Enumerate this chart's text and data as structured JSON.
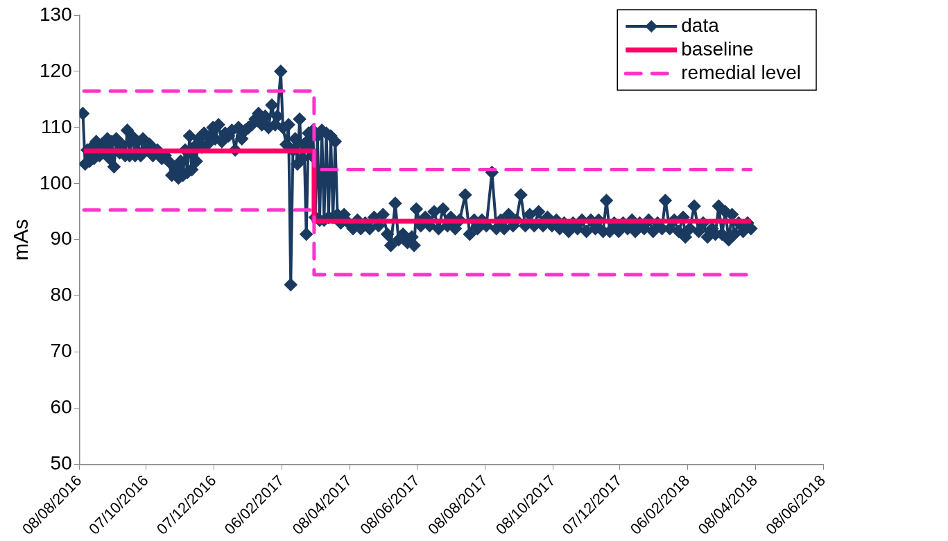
{
  "chart_data": {
    "type": "line",
    "ylabel": "mAs",
    "xlim": [
      "2016-08-08",
      "2018-06-08"
    ],
    "ylim": [
      50,
      130
    ],
    "yticks": [
      50,
      60,
      70,
      80,
      90,
      100,
      110,
      120,
      130
    ],
    "xticks": [
      {
        "value": "2016-08-08",
        "label": "08/08/2016"
      },
      {
        "value": "2016-10-07",
        "label": "07/10/2016"
      },
      {
        "value": "2016-12-07",
        "label": "07/12/2016"
      },
      {
        "value": "2017-02-06",
        "label": "06/02/2017"
      },
      {
        "value": "2017-04-08",
        "label": "08/04/2017"
      },
      {
        "value": "2017-06-08",
        "label": "08/06/2017"
      },
      {
        "value": "2017-08-08",
        "label": "08/08/2017"
      },
      {
        "value": "2017-10-08",
        "label": "08/10/2017"
      },
      {
        "value": "2017-12-07",
        "label": "07/12/2017"
      },
      {
        "value": "2018-02-06",
        "label": "06/02/2018"
      },
      {
        "value": "2018-04-08",
        "label": "08/04/2018"
      },
      {
        "value": "2018-06-08",
        "label": "08/06/2018"
      }
    ],
    "grid": false,
    "legend": "top right",
    "series": [
      {
        "name": "data",
        "color": "#1b3a60",
        "marker": "diamond",
        "line_style": "solid",
        "x": [
          "2016-08-11",
          "2016-08-13",
          "2016-08-15",
          "2016-08-17",
          "2016-08-19",
          "2016-08-21",
          "2016-08-23",
          "2016-08-26",
          "2016-08-28",
          "2016-08-31",
          "2016-09-02",
          "2016-09-04",
          "2016-09-06",
          "2016-09-08",
          "2016-09-10",
          "2016-09-13",
          "2016-09-15",
          "2016-09-18",
          "2016-09-20",
          "2016-09-22",
          "2016-09-24",
          "2016-09-27",
          "2016-09-29",
          "2016-10-02",
          "2016-10-04",
          "2016-10-07",
          "2016-10-10",
          "2016-10-13",
          "2016-10-17",
          "2016-10-21",
          "2016-10-24",
          "2016-10-27",
          "2016-10-30",
          "2016-11-02",
          "2016-11-05",
          "2016-11-07",
          "2016-11-09",
          "2016-11-11",
          "2016-11-13",
          "2016-11-15",
          "2016-11-17",
          "2016-11-19",
          "2016-11-21",
          "2016-11-23",
          "2016-11-26",
          "2016-11-28",
          "2016-12-01",
          "2016-12-03",
          "2016-12-06",
          "2016-12-08",
          "2016-12-11",
          "2016-12-14",
          "2016-12-17",
          "2016-12-20",
          "2016-12-23",
          "2016-12-26",
          "2016-12-29",
          "2017-01-01",
          "2017-01-04",
          "2017-01-07",
          "2017-01-10",
          "2017-01-13",
          "2017-01-16",
          "2017-01-19",
          "2017-01-22",
          "2017-01-25",
          "2017-01-28",
          "2017-01-31",
          "2017-02-02",
          "2017-02-05",
          "2017-02-07",
          "2017-02-10",
          "2017-02-12",
          "2017-02-14",
          "2017-02-16",
          "2017-02-18",
          "2017-02-20",
          "2017-02-22",
          "2017-02-24",
          "2017-02-26",
          "2017-02-28",
          "2017-03-02",
          "2017-03-03",
          "2017-03-05",
          "2017-03-06",
          "2017-03-08",
          "2017-03-10",
          "2017-03-12",
          "2017-03-14",
          "2017-03-16",
          "2017-03-18",
          "2017-03-20",
          "2017-03-22",
          "2017-03-24",
          "2017-03-26",
          "2017-03-28",
          "2017-03-31",
          "2017-04-03",
          "2017-04-07",
          "2017-04-11",
          "2017-04-15",
          "2017-04-18",
          "2017-04-22",
          "2017-04-26",
          "2017-04-30",
          "2017-05-04",
          "2017-05-08",
          "2017-05-12",
          "2017-05-15",
          "2017-05-19",
          "2017-05-22",
          "2017-05-26",
          "2017-05-30",
          "2017-06-03",
          "2017-06-05",
          "2017-06-07",
          "2017-06-11",
          "2017-06-15",
          "2017-06-19",
          "2017-06-23",
          "2017-06-27",
          "2017-07-01",
          "2017-07-05",
          "2017-07-08",
          "2017-07-12",
          "2017-07-16",
          "2017-07-21",
          "2017-07-25",
          "2017-07-29",
          "2017-08-01",
          "2017-08-05",
          "2017-08-09",
          "2017-08-14",
          "2017-08-18",
          "2017-08-22",
          "2017-08-25",
          "2017-08-29",
          "2017-09-02",
          "2017-09-05",
          "2017-09-09",
          "2017-09-13",
          "2017-09-17",
          "2017-09-21",
          "2017-09-25",
          "2017-09-29",
          "2017-10-03",
          "2017-10-07",
          "2017-10-11",
          "2017-10-14",
          "2017-10-18",
          "2017-10-22",
          "2017-10-26",
          "2017-10-30",
          "2017-11-03",
          "2017-11-07",
          "2017-11-11",
          "2017-11-15",
          "2017-11-18",
          "2017-11-22",
          "2017-11-25",
          "2017-11-28",
          "2017-12-02",
          "2017-12-06",
          "2017-12-10",
          "2017-12-14",
          "2017-12-18",
          "2017-12-21",
          "2017-12-25",
          "2017-12-29",
          "2018-01-02",
          "2018-01-06",
          "2018-01-10",
          "2018-01-14",
          "2018-01-17",
          "2018-01-21",
          "2018-01-25",
          "2018-01-29",
          "2018-02-02",
          "2018-02-04",
          "2018-02-08",
          "2018-02-12",
          "2018-02-16",
          "2018-02-20",
          "2018-02-24",
          "2018-02-28",
          "2018-03-03",
          "2018-03-06",
          "2018-03-09",
          "2018-03-12",
          "2018-03-15",
          "2018-03-18",
          "2018-03-20",
          "2018-03-24",
          "2018-03-28",
          "2018-04-01",
          "2018-04-04"
        ],
        "values": [
          112.5,
          103.5,
          106,
          104,
          106.5,
          104.5,
          107.5,
          105,
          107,
          106,
          108,
          104.5,
          107.5,
          103,
          108,
          105.5,
          107,
          105,
          109.5,
          105,
          108.5,
          105,
          107.5,
          105,
          108,
          106,
          107,
          105,
          106,
          104.5,
          105,
          104,
          101.5,
          103,
          101,
          104,
          101.5,
          106,
          102,
          108.5,
          102.5,
          106.5,
          104,
          108,
          106.5,
          109,
          107,
          108.5,
          110,
          108,
          110.5,
          107.5,
          109,
          108.5,
          109.5,
          106,
          110,
          108,
          109.5,
          110,
          110.5,
          111.5,
          112.5,
          110.5,
          112,
          110,
          114,
          110.5,
          112,
          120,
          110,
          107,
          110.5,
          82,
          106,
          108,
          103.5,
          111.5,
          104.5,
          107,
          91,
          109,
          108,
          105,
          109.5,
          94,
          108.5,
          93.5,
          109.5,
          93.5,
          109,
          94,
          108.5,
          94,
          107.5,
          94.5,
          93,
          94.5,
          93,
          92,
          93.5,
          92,
          93,
          92,
          94,
          92.5,
          94.5,
          91,
          89,
          96.5,
          90,
          91,
          89.5,
          90.5,
          89,
          95.5,
          92.5,
          94,
          92.5,
          95,
          92,
          95.5,
          92.5,
          94,
          92,
          93.5,
          98,
          91,
          93.5,
          92,
          93.5,
          92.5,
          102,
          92,
          93.5,
          92,
          94.5,
          92.5,
          93.5,
          98,
          92.5,
          94.5,
          92.5,
          95,
          92.5,
          94,
          92.5,
          93.5,
          92,
          93,
          91.5,
          93,
          92,
          93.5,
          91.5,
          93.5,
          92,
          93.5,
          91.5,
          97,
          91.5,
          93,
          91.5,
          93,
          92,
          93.5,
          91.5,
          93,
          92,
          93.5,
          91.5,
          93,
          92,
          97,
          92,
          93.5,
          91.5,
          94,
          90.5,
          92,
          96,
          91.5,
          93,
          90.5,
          92,
          91,
          96,
          91,
          95,
          90,
          94.5,
          91,
          93,
          91.5,
          93,
          92
        ]
      },
      {
        "name": "baseline",
        "color": "#ff0066",
        "marker": "none",
        "line_style": "solid",
        "x": [
          "2016-08-12",
          "2017-03-07",
          "2017-03-07",
          "2018-04-04"
        ],
        "values": [
          105.8,
          105.8,
          93.3,
          93.3
        ]
      },
      {
        "name": "remedial level",
        "color": "#ff33cc",
        "marker": "none",
        "line_style": "dashed",
        "x": [
          "2016-08-12",
          "2017-03-07",
          "2017-03-07",
          "2018-04-04"
        ],
        "values": [
          116.5,
          116.5,
          102.5,
          102.5
        ]
      },
      {
        "color": "#ff33cc",
        "marker": "none",
        "line_style": "dashed",
        "x": [
          "2016-08-12",
          "2017-03-07",
          "2017-03-07",
          "2018-04-04"
        ],
        "values": [
          95.3,
          95.3,
          83.8,
          83.8
        ]
      }
    ]
  }
}
